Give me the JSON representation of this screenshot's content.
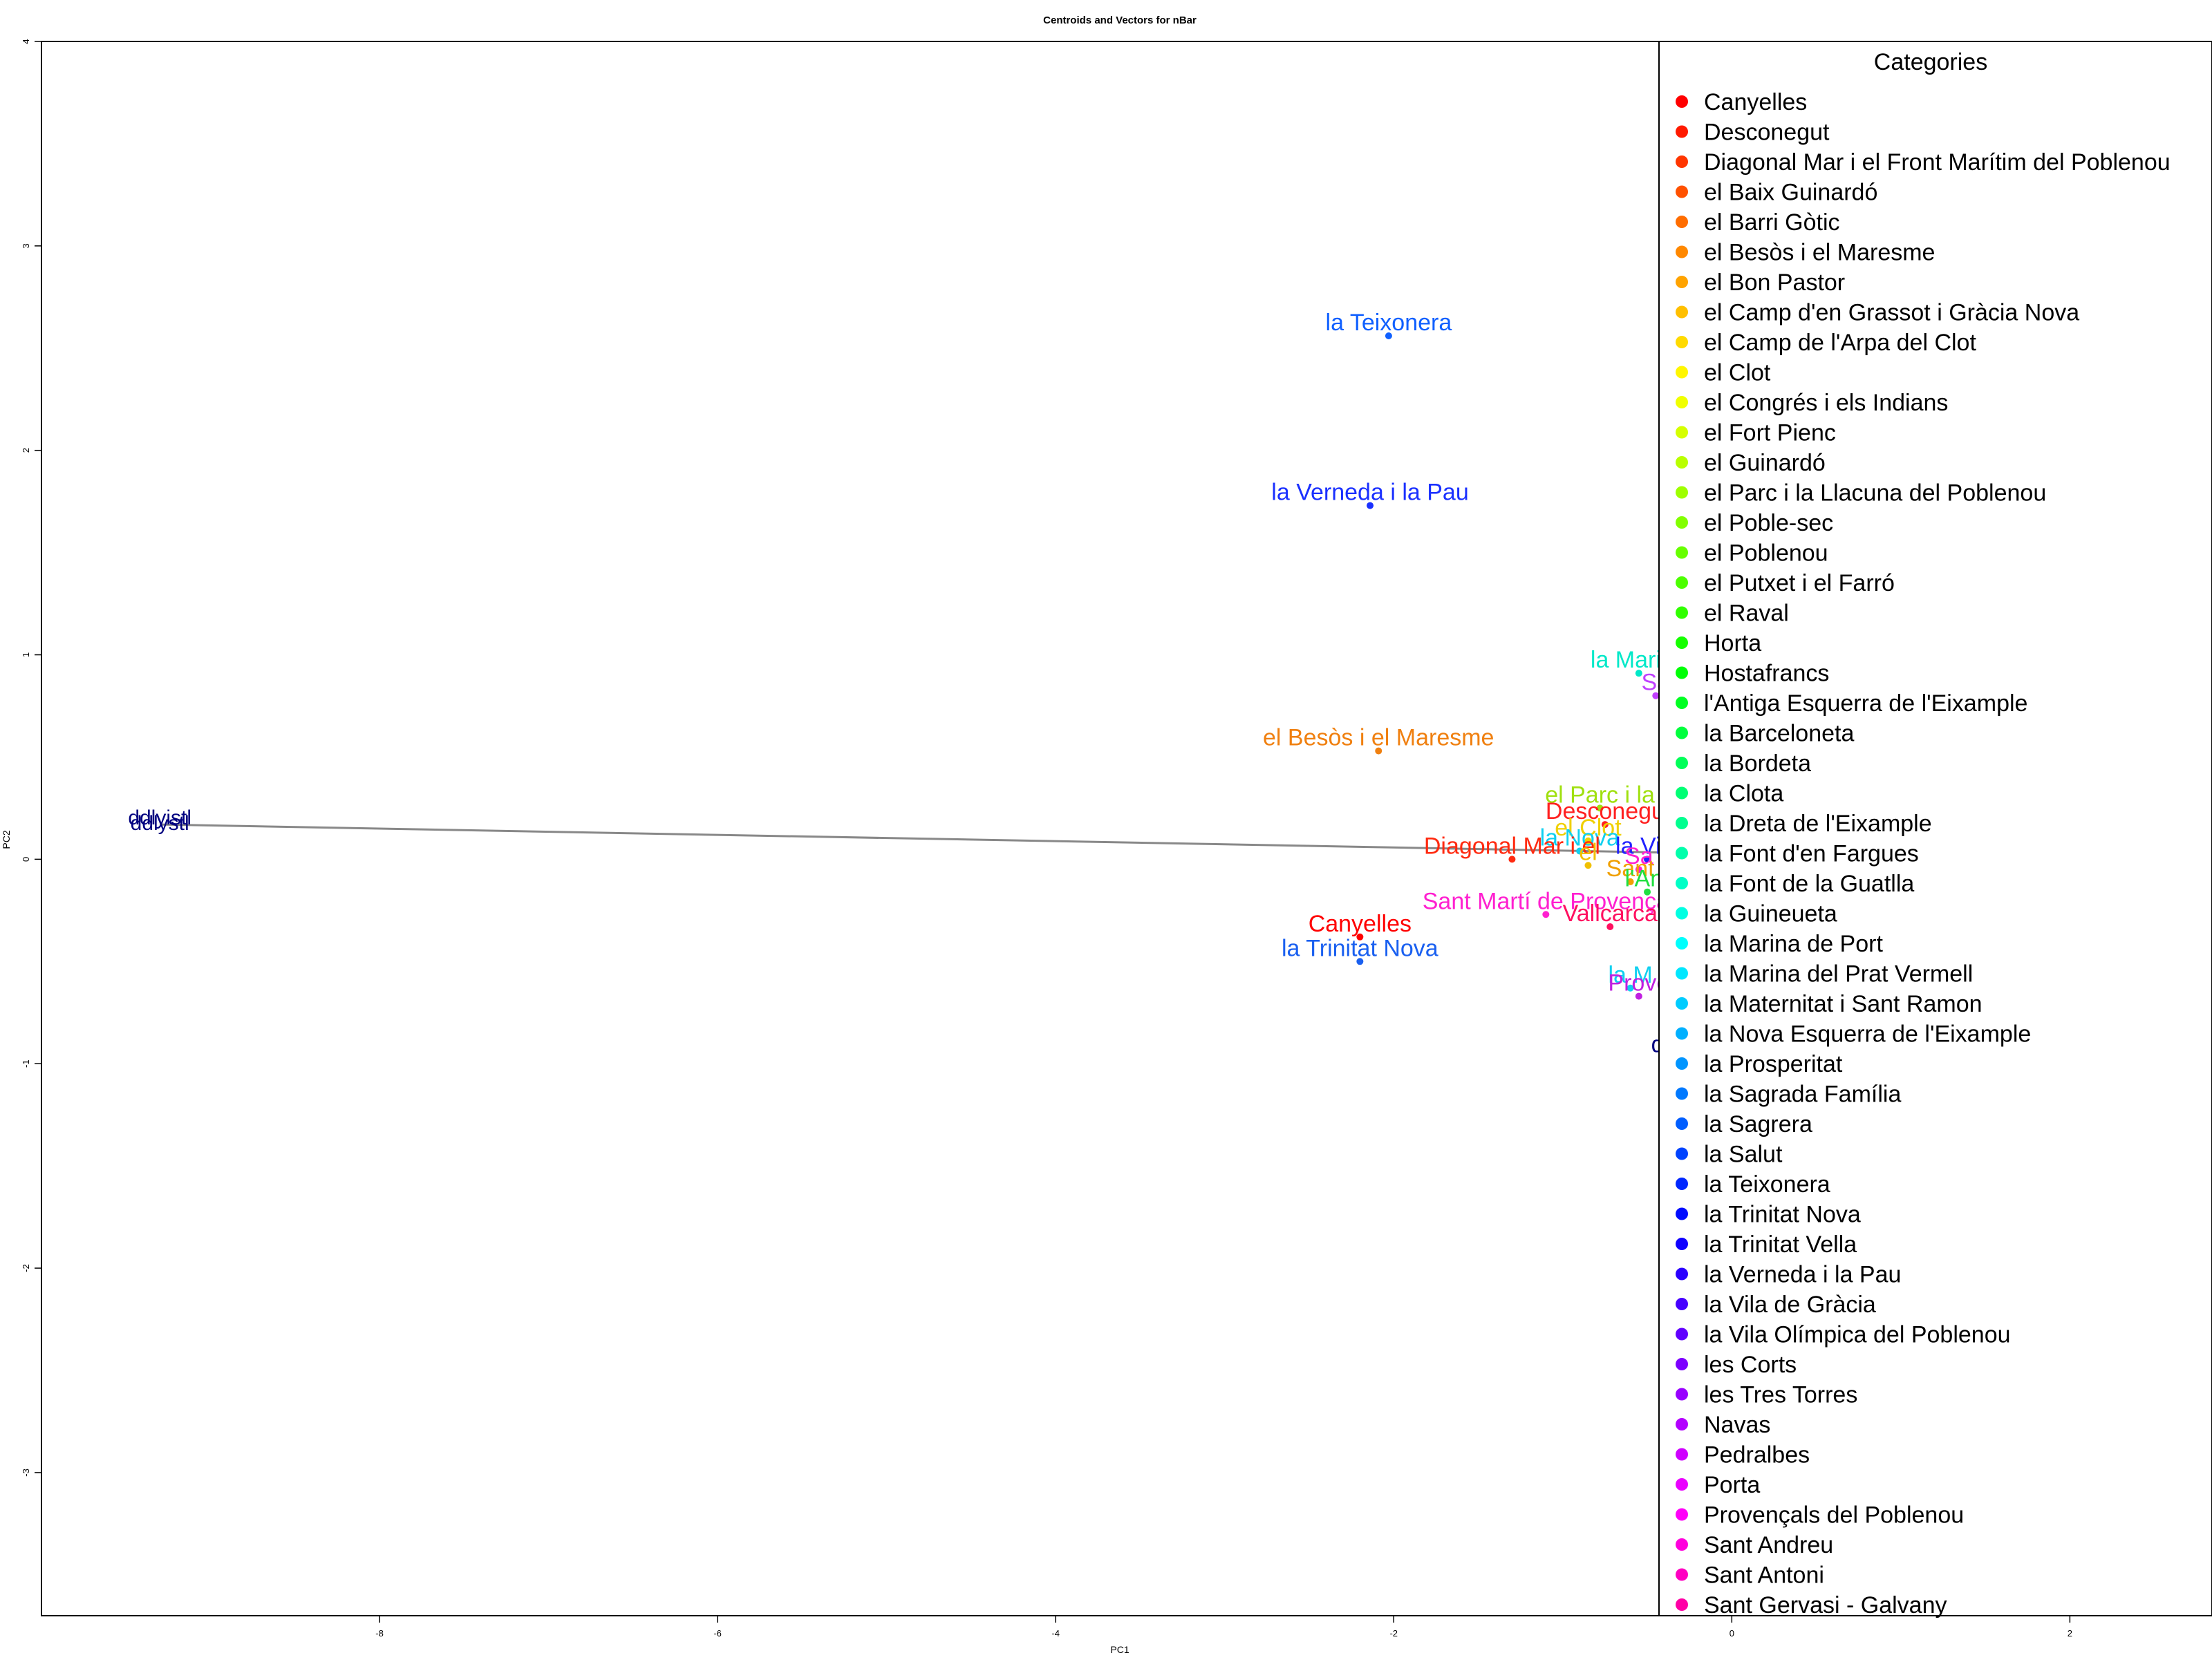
{
  "chart_data": {
    "type": "scatter",
    "title": "Centroids and Vectors for  nBar",
    "xlabel": "PC1",
    "ylabel": "PC2",
    "xlim": [
      -10,
      2.8
    ],
    "ylim": [
      -3.7,
      4.0
    ],
    "xticks": [
      -8,
      -6,
      -4,
      -2,
      0,
      2
    ],
    "yticks": [
      -3,
      -2,
      -1,
      0,
      1,
      2,
      3,
      4
    ],
    "grid": false,
    "vector": {
      "from": [
        -0.2,
        0.03
      ],
      "to": [
        -9.3,
        0.17
      ],
      "labels": [
        "ddlyistl",
        "ddlystl"
      ],
      "color": "#000080"
    },
    "legend": {
      "title": "Categories",
      "placement": "right",
      "entries": [
        {
          "name": "Canyelles",
          "color": "#ff0000"
        },
        {
          "name": "Desconegut",
          "color": "#ff1a00"
        },
        {
          "name": "Diagonal Mar i el Front Marítim del Poblenou",
          "color": "#ff3600"
        },
        {
          "name": "el Baix Guinardó",
          "color": "#ff5100"
        },
        {
          "name": "el Barri Gòtic",
          "color": "#ff6d00"
        },
        {
          "name": "el Besòs i el Maresme",
          "color": "#ff8800"
        },
        {
          "name": "el Bon Pastor",
          "color": "#ffa300"
        },
        {
          "name": "el Camp d'en Grassot i Gràcia Nova",
          "color": "#ffbf00"
        },
        {
          "name": "el Camp de l'Arpa del Clot",
          "color": "#ffda00"
        },
        {
          "name": "el Clot",
          "color": "#fff600"
        },
        {
          "name": "el Congrés i els Indians",
          "color": "#f0ff00"
        },
        {
          "name": "el Fort Pienc",
          "color": "#d5ff00"
        },
        {
          "name": "el Guinardó",
          "color": "#b9ff00"
        },
        {
          "name": "el Parc i la Llacuna del Poblenou",
          "color": "#9eff00"
        },
        {
          "name": "el Poble-sec",
          "color": "#82ff00"
        },
        {
          "name": "el Poblenou",
          "color": "#67ff00"
        },
        {
          "name": "el Putxet i el Farró",
          "color": "#4cff00"
        },
        {
          "name": "el Raval",
          "color": "#30ff00"
        },
        {
          "name": "Horta",
          "color": "#15ff00"
        },
        {
          "name": "Hostafrancs",
          "color": "#00ff06"
        },
        {
          "name": "l'Antiga Esquerra de l'Eixample",
          "color": "#00ff22"
        },
        {
          "name": "la Barceloneta",
          "color": "#00ff3d"
        },
        {
          "name": "la Bordeta",
          "color": "#00ff58"
        },
        {
          "name": "la Clota",
          "color": "#00ff74"
        },
        {
          "name": "la Dreta de l'Eixample",
          "color": "#00ff8f"
        },
        {
          "name": "la Font d'en Fargues",
          "color": "#00ffab"
        },
        {
          "name": "la Font de la Guatlla",
          "color": "#00ffc6"
        },
        {
          "name": "la Guineueta",
          "color": "#00ffe2"
        },
        {
          "name": "la Marina de Port",
          "color": "#00fffd"
        },
        {
          "name": "la Marina del Prat Vermell",
          "color": "#00e7ff"
        },
        {
          "name": "la Maternitat i Sant Ramon",
          "color": "#00ccff"
        },
        {
          "name": "la Nova Esquerra de l'Eixample",
          "color": "#00b0ff"
        },
        {
          "name": "la Prosperitat",
          "color": "#0095ff"
        },
        {
          "name": "la Sagrada Família",
          "color": "#0079ff"
        },
        {
          "name": "la Sagrera",
          "color": "#005eff"
        },
        {
          "name": "la Salut",
          "color": "#0043ff"
        },
        {
          "name": "la Teixonera",
          "color": "#0027ff"
        },
        {
          "name": "la Trinitat Nova",
          "color": "#000cff"
        },
        {
          "name": "la Trinitat Vella",
          "color": "#0f00ff"
        },
        {
          "name": "la Verneda i la Pau",
          "color": "#2a00ff"
        },
        {
          "name": "la Vila de Gràcia",
          "color": "#4600ff"
        },
        {
          "name": "la Vila Olímpica del Poblenou",
          "color": "#6100ff"
        },
        {
          "name": "les Corts",
          "color": "#7c00ff"
        },
        {
          "name": "les Tres Torres",
          "color": "#9800ff"
        },
        {
          "name": "Navas",
          "color": "#b300ff"
        },
        {
          "name": "Pedralbes",
          "color": "#cf00ff"
        },
        {
          "name": "Porta",
          "color": "#ea00ff"
        },
        {
          "name": "Provençals del Poblenou",
          "color": "#ff00f9"
        },
        {
          "name": "Sant Andreu",
          "color": "#ff00dd"
        },
        {
          "name": "Sant Antoni",
          "color": "#ff00c2"
        },
        {
          "name": "Sant Gervasi - Galvany",
          "color": "#ff00a6"
        }
      ]
    },
    "points": [
      {
        "label": "la Teixonera",
        "x": -2.03,
        "y": 2.56,
        "color": "#1060ff"
      },
      {
        "label": "la Verneda i la Pau",
        "x": -2.14,
        "y": 1.73,
        "color": "#1a30ff"
      },
      {
        "label": "la Marina",
        "x": -0.55,
        "y": 0.91,
        "color": "#00e8c8"
      },
      {
        "label": "Sa",
        "x": -0.45,
        "y": 0.8,
        "color": "#c040ff"
      },
      {
        "label": "el Besòs i el Maresme",
        "x": -2.09,
        "y": 0.53,
        "color": "#f08010"
      },
      {
        "label": "e",
        "x": -0.4,
        "y": 0.45,
        "color": "#f08010"
      },
      {
        "label": "el Parc i la",
        "x": -0.78,
        "y": 0.25,
        "color": "#a0e010"
      },
      {
        "label": "Desconegu",
        "x": -0.75,
        "y": 0.17,
        "color": "#ff2020"
      },
      {
        "label": "el Clot",
        "x": -0.85,
        "y": 0.09,
        "color": "#f0d000"
      },
      {
        "label": "la Nova",
        "x": -0.9,
        "y": 0.04,
        "color": "#10d0f0"
      },
      {
        "label": "Diagonal Mar i el",
        "x": -1.3,
        "y": 0.0,
        "color": "#ff2a10"
      },
      {
        "label": "la Vila",
        "x": -0.5,
        "y": 0.0,
        "color": "#2020ff"
      },
      {
        "label": "el",
        "x": -0.85,
        "y": -0.03,
        "color": "#f0c000"
      },
      {
        "label": "Sa",
        "x": -0.55,
        "y": -0.05,
        "color": "#ff20d0"
      },
      {
        "label": "Sant",
        "x": -0.6,
        "y": -0.11,
        "color": "#f0a000"
      },
      {
        "label": "l'Ant",
        "x": -0.5,
        "y": -0.16,
        "color": "#20e040"
      },
      {
        "label": "Sant Martí de Provença",
        "x": -1.1,
        "y": -0.27,
        "color": "#ff20d0"
      },
      {
        "label": "Vallcarca",
        "x": -0.72,
        "y": -0.33,
        "color": "#ff1060"
      },
      {
        "label": "Canyelles",
        "x": -2.2,
        "y": -0.38,
        "color": "#ff0000"
      },
      {
        "label": "la Trinitat Nova",
        "x": -2.2,
        "y": -0.5,
        "color": "#1a60f0"
      },
      {
        "label": "la M",
        "x": -0.6,
        "y": -0.63,
        "color": "#10d0f0"
      },
      {
        "label": "Prove",
        "x": -0.55,
        "y": -0.67,
        "color": "#c020e0"
      },
      {
        "label": "dd",
        "x": -0.4,
        "y": -0.97,
        "color": "#000080"
      }
    ]
  }
}
